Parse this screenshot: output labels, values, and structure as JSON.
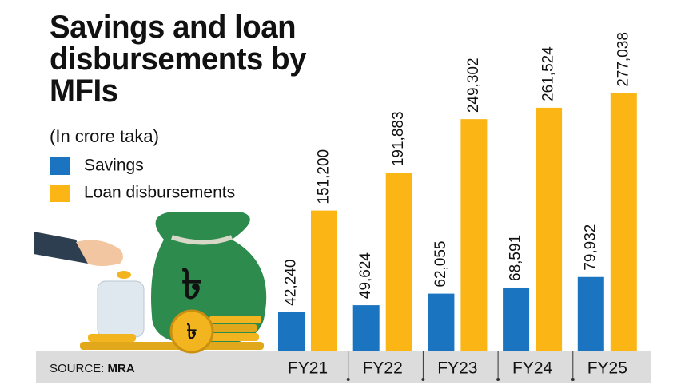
{
  "chart_data": {
    "type": "bar",
    "title": "Savings and loan disbursements by MFIs",
    "subtitle": "(In crore taka)",
    "categories": [
      "FY21",
      "FY22",
      "FY23",
      "FY24",
      "FY25"
    ],
    "series": [
      {
        "name": "Savings",
        "color": "#1a74c0",
        "values": [
          42240,
          49624,
          62055,
          68591,
          79932
        ],
        "value_labels": [
          "42,240",
          "49,624",
          "62,055",
          "68,591",
          "79,932"
        ]
      },
      {
        "name": "Loan disbursements",
        "color": "#fbb616",
        "values": [
          151200,
          191883,
          249302,
          261524,
          277038
        ],
        "value_labels": [
          "151,200",
          "191,883",
          "249,302",
          "261,524",
          "277,038"
        ]
      }
    ],
    "ylim": [
      0,
      300000
    ],
    "source_label": "SOURCE:",
    "source": "MRA"
  }
}
